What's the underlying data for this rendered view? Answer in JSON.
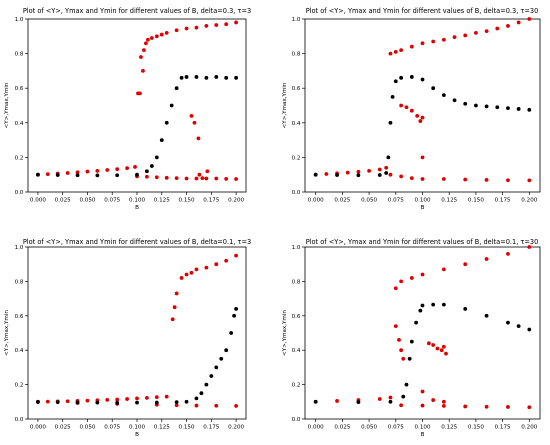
{
  "colors": {
    "max_min": "#e00000",
    "mean": "#000000"
  },
  "chart_data": [
    {
      "type": "scatter",
      "title": "Plot of <Y>, Ymax and Ymin for different values of B, delta=0.3, τ=3",
      "xlabel": "B",
      "ylabel": "<Y>,Ymax,Ymin",
      "xlim": [
        -0.01,
        0.21
      ],
      "ylim": [
        0,
        1.0
      ],
      "xticks": [
        "0.000",
        "0.025",
        "0.050",
        "0.075",
        "0.100",
        "0.125",
        "0.150",
        "0.175",
        "0.200"
      ],
      "yticks": [
        "0.0",
        "0.2",
        "0.4",
        "0.6",
        "0.8",
        "1.0"
      ],
      "grid": false,
      "series": [
        {
          "color": "#e00000",
          "points": [
            [
              0.0,
              0.1
            ],
            [
              0.01,
              0.103
            ],
            [
              0.02,
              0.107
            ],
            [
              0.03,
              0.11
            ],
            [
              0.04,
              0.114
            ],
            [
              0.05,
              0.118
            ],
            [
              0.06,
              0.122
            ],
            [
              0.07,
              0.127
            ],
            [
              0.08,
              0.132
            ],
            [
              0.09,
              0.138
            ],
            [
              0.098,
              0.145
            ],
            [
              0.1,
              0.09
            ],
            [
              0.11,
              0.088
            ],
            [
              0.12,
              0.085
            ],
            [
              0.13,
              0.082
            ],
            [
              0.14,
              0.08
            ],
            [
              0.15,
              0.078
            ],
            [
              0.16,
              0.078
            ],
            [
              0.17,
              0.078
            ],
            [
              0.18,
              0.078
            ],
            [
              0.19,
              0.076
            ],
            [
              0.2,
              0.075
            ],
            [
              0.101,
              0.57
            ],
            [
              0.103,
              0.57
            ],
            [
              0.104,
              0.78
            ],
            [
              0.106,
              0.7
            ],
            [
              0.107,
              0.82
            ],
            [
              0.109,
              0.86
            ],
            [
              0.111,
              0.88
            ],
            [
              0.115,
              0.89
            ],
            [
              0.12,
              0.9
            ],
            [
              0.125,
              0.91
            ],
            [
              0.13,
              0.92
            ],
            [
              0.14,
              0.935
            ],
            [
              0.15,
              0.945
            ],
            [
              0.16,
              0.95
            ],
            [
              0.17,
              0.96
            ],
            [
              0.18,
              0.965
            ],
            [
              0.19,
              0.97
            ],
            [
              0.2,
              0.98
            ],
            [
              0.155,
              0.44
            ],
            [
              0.158,
              0.4
            ],
            [
              0.162,
              0.31
            ],
            [
              0.163,
              0.1
            ],
            [
              0.166,
              0.08
            ],
            [
              0.171,
              0.12
            ]
          ]
        },
        {
          "color": "#000000",
          "points": [
            [
              0.0,
              0.1
            ],
            [
              0.02,
              0.098
            ],
            [
              0.04,
              0.097
            ],
            [
              0.06,
              0.096
            ],
            [
              0.08,
              0.097
            ],
            [
              0.1,
              0.1
            ],
            [
              0.11,
              0.12
            ],
            [
              0.115,
              0.15
            ],
            [
              0.12,
              0.2
            ],
            [
              0.125,
              0.3
            ],
            [
              0.13,
              0.4
            ],
            [
              0.135,
              0.5
            ],
            [
              0.14,
              0.6
            ],
            [
              0.145,
              0.66
            ],
            [
              0.15,
              0.665
            ],
            [
              0.16,
              0.665
            ],
            [
              0.17,
              0.66
            ],
            [
              0.18,
              0.665
            ],
            [
              0.19,
              0.66
            ],
            [
              0.2,
              0.66
            ]
          ]
        }
      ]
    },
    {
      "type": "scatter",
      "title": "Plot of <Y>, Ymax and Ymin for different values of B, delta=0.3, τ=30",
      "xlabel": "B",
      "ylabel": "<Y>,Ymax,Ymin",
      "xlim": [
        -0.01,
        0.21
      ],
      "ylim": [
        0,
        1.0
      ],
      "xticks": [
        "0.000",
        "0.025",
        "0.050",
        "0.075",
        "0.100",
        "0.125",
        "0.150",
        "0.175",
        "0.200"
      ],
      "yticks": [
        "0.0",
        "0.2",
        "0.4",
        "0.6",
        "0.8",
        "1.0"
      ],
      "grid": false,
      "series": [
        {
          "color": "#e00000",
          "points": [
            [
              0.0,
              0.1
            ],
            [
              0.01,
              0.104
            ],
            [
              0.02,
              0.108
            ],
            [
              0.03,
              0.112
            ],
            [
              0.04,
              0.117
            ],
            [
              0.05,
              0.122
            ],
            [
              0.06,
              0.13
            ],
            [
              0.066,
              0.14
            ],
            [
              0.07,
              0.8
            ],
            [
              0.075,
              0.81
            ],
            [
              0.08,
              0.82
            ],
            [
              0.09,
              0.84
            ],
            [
              0.1,
              0.86
            ],
            [
              0.11,
              0.87
            ],
            [
              0.12,
              0.88
            ],
            [
              0.13,
              0.895
            ],
            [
              0.14,
              0.905
            ],
            [
              0.15,
              0.92
            ],
            [
              0.16,
              0.93
            ],
            [
              0.17,
              0.945
            ],
            [
              0.18,
              0.96
            ],
            [
              0.19,
              0.98
            ],
            [
              0.2,
              1.0
            ],
            [
              0.08,
              0.5
            ],
            [
              0.085,
              0.49
            ],
            [
              0.09,
              0.47
            ],
            [
              0.095,
              0.44
            ],
            [
              0.098,
              0.41
            ],
            [
              0.1,
              0.43
            ],
            [
              0.1,
              0.2
            ],
            [
              0.07,
              0.1
            ],
            [
              0.08,
              0.09
            ],
            [
              0.09,
              0.08
            ],
            [
              0.1,
              0.075
            ],
            [
              0.12,
              0.075
            ],
            [
              0.14,
              0.072
            ],
            [
              0.16,
              0.07
            ],
            [
              0.18,
              0.068
            ],
            [
              0.2,
              0.067
            ]
          ]
        },
        {
          "color": "#000000",
          "points": [
            [
              0.0,
              0.1
            ],
            [
              0.02,
              0.098
            ],
            [
              0.04,
              0.097
            ],
            [
              0.06,
              0.098
            ],
            [
              0.066,
              0.11
            ],
            [
              0.068,
              0.2
            ],
            [
              0.07,
              0.4
            ],
            [
              0.072,
              0.55
            ],
            [
              0.075,
              0.64
            ],
            [
              0.08,
              0.66
            ],
            [
              0.09,
              0.665
            ],
            [
              0.1,
              0.65
            ],
            [
              0.11,
              0.6
            ],
            [
              0.12,
              0.56
            ],
            [
              0.13,
              0.53
            ],
            [
              0.14,
              0.51
            ],
            [
              0.15,
              0.5
            ],
            [
              0.16,
              0.495
            ],
            [
              0.17,
              0.49
            ],
            [
              0.18,
              0.485
            ],
            [
              0.19,
              0.48
            ],
            [
              0.2,
              0.475
            ]
          ]
        }
      ]
    },
    {
      "type": "scatter",
      "title": "Plot of <Y>, Ymax and Ymin for different values of B, delta=0.1, τ=3",
      "xlabel": "B",
      "ylabel": "<Y>,Ymax,Ymin",
      "xlim": [
        -0.01,
        0.21
      ],
      "ylim": [
        0,
        1.0
      ],
      "xticks": [
        "0.000",
        "0.025",
        "0.050",
        "0.075",
        "0.100",
        "0.125",
        "0.150",
        "0.175",
        "0.200"
      ],
      "yticks": [
        "0.0",
        "0.2",
        "0.4",
        "0.6",
        "0.8",
        "1.0"
      ],
      "grid": false,
      "series": [
        {
          "color": "#e00000",
          "points": [
            [
              0.0,
              0.1
            ],
            [
              0.01,
              0.101
            ],
            [
              0.02,
              0.102
            ],
            [
              0.03,
              0.103
            ],
            [
              0.04,
              0.105
            ],
            [
              0.05,
              0.107
            ],
            [
              0.06,
              0.109
            ],
            [
              0.07,
              0.111
            ],
            [
              0.08,
              0.113
            ],
            [
              0.09,
              0.116
            ],
            [
              0.1,
              0.12
            ],
            [
              0.11,
              0.123
            ],
            [
              0.12,
              0.127
            ],
            [
              0.13,
              0.13
            ],
            [
              0.0,
              0.098
            ],
            [
              0.04,
              0.093
            ],
            [
              0.08,
              0.088
            ],
            [
              0.12,
              0.083
            ],
            [
              0.14,
              0.08
            ],
            [
              0.16,
              0.078
            ],
            [
              0.18,
              0.077
            ],
            [
              0.2,
              0.076
            ],
            [
              0.136,
              0.58
            ],
            [
              0.138,
              0.65
            ],
            [
              0.14,
              0.73
            ],
            [
              0.145,
              0.82
            ],
            [
              0.15,
              0.84
            ],
            [
              0.155,
              0.85
            ],
            [
              0.16,
              0.87
            ],
            [
              0.17,
              0.88
            ],
            [
              0.18,
              0.9
            ],
            [
              0.19,
              0.92
            ],
            [
              0.2,
              0.95
            ]
          ]
        },
        {
          "color": "#000000",
          "points": [
            [
              0.0,
              0.1
            ],
            [
              0.02,
              0.098
            ],
            [
              0.04,
              0.096
            ],
            [
              0.06,
              0.095
            ],
            [
              0.08,
              0.094
            ],
            [
              0.1,
              0.095
            ],
            [
              0.12,
              0.096
            ],
            [
              0.14,
              0.098
            ],
            [
              0.15,
              0.1
            ],
            [
              0.16,
              0.12
            ],
            [
              0.165,
              0.15
            ],
            [
              0.17,
              0.2
            ],
            [
              0.175,
              0.25
            ],
            [
              0.18,
              0.3
            ],
            [
              0.185,
              0.35
            ],
            [
              0.19,
              0.4
            ],
            [
              0.195,
              0.5
            ],
            [
              0.198,
              0.6
            ],
            [
              0.2,
              0.64
            ]
          ]
        }
      ]
    },
    {
      "type": "scatter",
      "title": "Plot of <Y>, Ymax and Ymin for different values of B, delta=0.1, τ=30",
      "xlabel": "B",
      "ylabel": "<Y>,Ymax,Ymin",
      "xlim": [
        -0.01,
        0.21
      ],
      "ylim": [
        0,
        1.0
      ],
      "xticks": [
        "0.000",
        "0.025",
        "0.050",
        "0.075",
        "0.100",
        "0.125",
        "0.150",
        "0.175",
        "0.200"
      ],
      "yticks": [
        "0.0",
        "0.2",
        "0.4",
        "0.6",
        "0.8",
        "1.0"
      ],
      "grid": false,
      "series": [
        {
          "color": "#e00000",
          "points": [
            [
              0.0,
              0.1
            ],
            [
              0.02,
              0.105
            ],
            [
              0.04,
              0.11
            ],
            [
              0.06,
              0.116
            ],
            [
              0.07,
              0.125
            ],
            [
              0.075,
              0.76
            ],
            [
              0.08,
              0.8
            ],
            [
              0.09,
              0.82
            ],
            [
              0.1,
              0.84
            ],
            [
              0.12,
              0.87
            ],
            [
              0.14,
              0.9
            ],
            [
              0.16,
              0.93
            ],
            [
              0.18,
              0.96
            ],
            [
              0.2,
              1.0
            ],
            [
              0.075,
              0.54
            ],
            [
              0.078,
              0.46
            ],
            [
              0.08,
              0.4
            ],
            [
              0.082,
              0.35
            ],
            [
              0.106,
              0.44
            ],
            [
              0.11,
              0.43
            ],
            [
              0.114,
              0.41
            ],
            [
              0.118,
              0.4
            ],
            [
              0.12,
              0.42
            ],
            [
              0.122,
              0.38
            ],
            [
              0.1,
              0.16
            ],
            [
              0.11,
              0.11
            ],
            [
              0.12,
              0.1
            ],
            [
              0.08,
              0.08
            ],
            [
              0.1,
              0.078
            ],
            [
              0.12,
              0.076
            ],
            [
              0.14,
              0.073
            ],
            [
              0.16,
              0.071
            ],
            [
              0.18,
              0.07
            ],
            [
              0.2,
              0.068
            ]
          ]
        },
        {
          "color": "#000000",
          "points": [
            [
              0.0,
              0.1
            ],
            [
              0.04,
              0.098
            ],
            [
              0.07,
              0.1
            ],
            [
              0.082,
              0.13
            ],
            [
              0.085,
              0.2
            ],
            [
              0.088,
              0.35
            ],
            [
              0.09,
              0.45
            ],
            [
              0.094,
              0.56
            ],
            [
              0.098,
              0.63
            ],
            [
              0.1,
              0.66
            ],
            [
              0.11,
              0.665
            ],
            [
              0.12,
              0.665
            ],
            [
              0.14,
              0.64
            ],
            [
              0.16,
              0.6
            ],
            [
              0.18,
              0.56
            ],
            [
              0.19,
              0.54
            ],
            [
              0.2,
              0.52
            ]
          ]
        }
      ]
    }
  ]
}
